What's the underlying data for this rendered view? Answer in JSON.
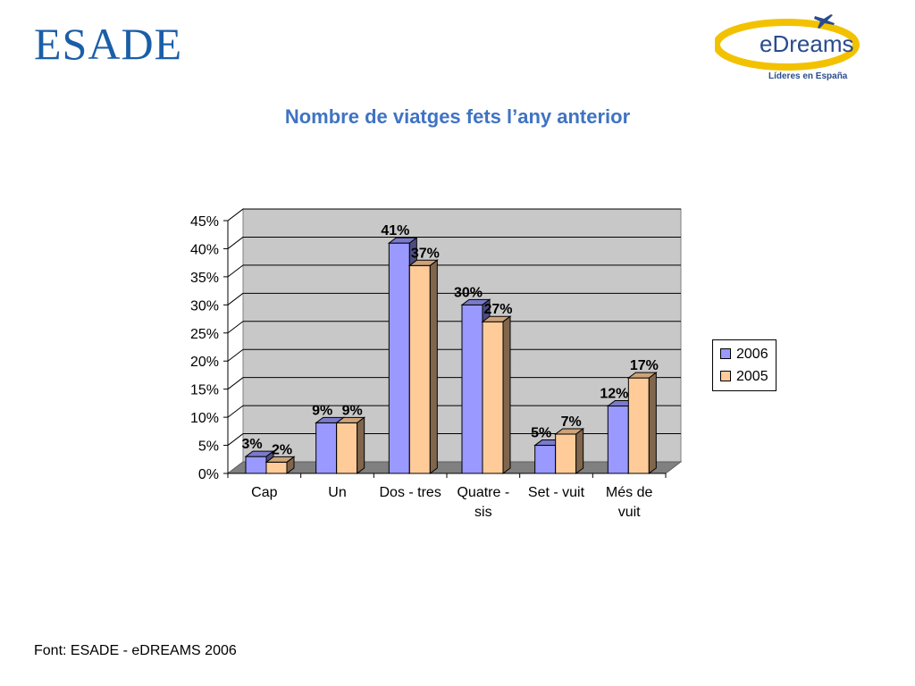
{
  "header": {
    "logo_left_text": "ESADE",
    "logo_right_text": "eDreams",
    "logo_right_tagline": "Líderes en España"
  },
  "colors": {
    "series_2006": "#9999ff",
    "series_2005": "#ffcc99",
    "title": "#3f73c4",
    "plot_back": "#c8c8c8"
  },
  "chart_data": {
    "type": "bar",
    "title": "Nombre de viatges fets l’any anterior",
    "categories": [
      "Cap",
      "Un",
      "Dos - tres",
      "Quatre - sis",
      "Set - vuit",
      "Més de vuit"
    ],
    "category_lines": [
      [
        "Cap"
      ],
      [
        "Un"
      ],
      [
        "Dos - tres"
      ],
      [
        "Quatre -",
        "sis"
      ],
      [
        "Set - vuit"
      ],
      [
        "Més de",
        "vuit"
      ]
    ],
    "series": [
      {
        "name": "2006",
        "values": [
          3,
          9,
          41,
          30,
          5,
          12
        ],
        "labels": [
          "3%",
          "9%",
          "41%",
          "30%",
          "5%",
          "12%"
        ]
      },
      {
        "name": "2005",
        "values": [
          2,
          9,
          37,
          27,
          7,
          17
        ],
        "labels": [
          "2%",
          "9%",
          "37%",
          "27%",
          "7%",
          "17%"
        ]
      }
    ],
    "ylim": [
      0,
      45
    ],
    "yticks": [
      "0%",
      "5%",
      "10%",
      "15%",
      "20%",
      "25%",
      "30%",
      "35%",
      "40%",
      "45%"
    ],
    "grid": true,
    "legend_position": "right",
    "three_d": true
  },
  "footer": {
    "source": "Font: ESADE - eDREAMS 2006"
  }
}
